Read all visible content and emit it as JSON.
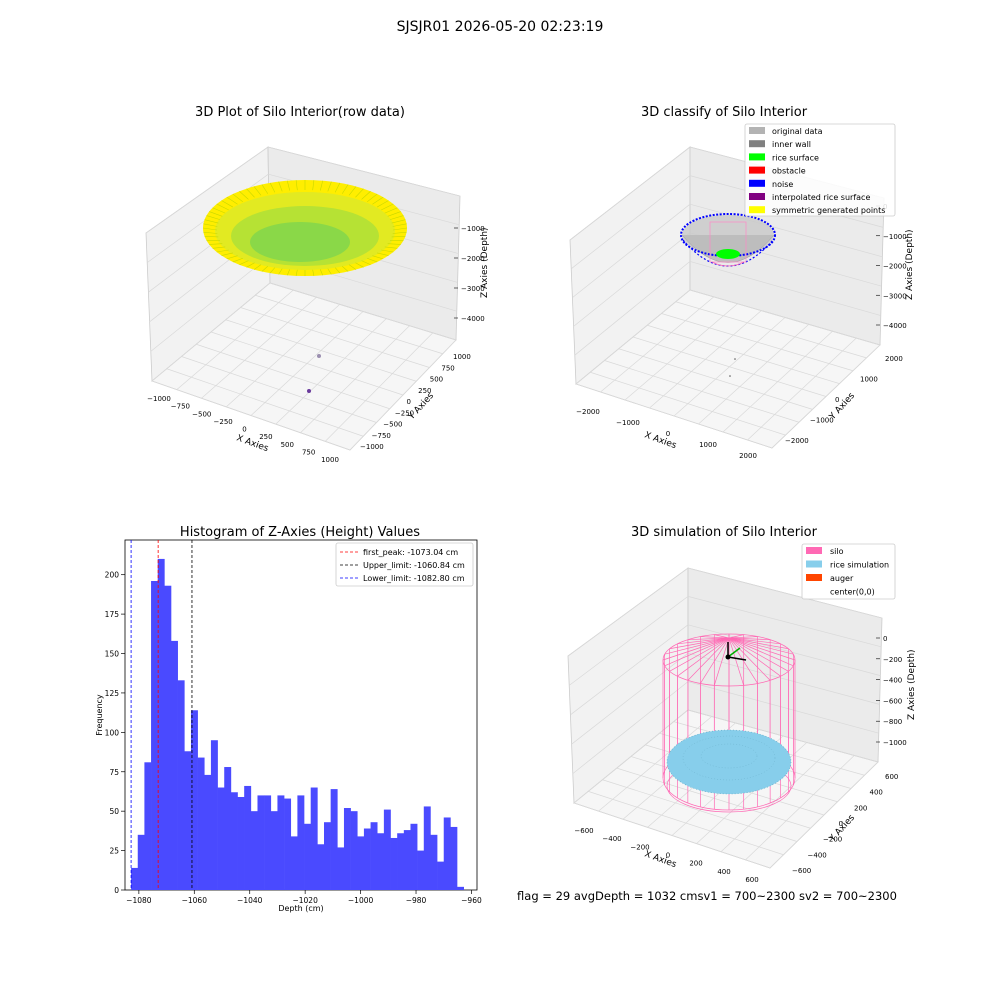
{
  "suptitle": "SJSJR01 2026-05-20 02:23:19",
  "panel_raw": {
    "title": "3D Plot of Silo Interior(row data)",
    "xlabel": "X Axies",
    "ylabel": "Y Axies",
    "zlabel": "Z Axies (Depth)",
    "x_ticks": [
      "−1000",
      "−750",
      "−500",
      "−250",
      "0",
      "250",
      "500",
      "750",
      "1000"
    ],
    "y_ticks": [
      "−1000",
      "−750",
      "−500",
      "−250",
      "0",
      "250",
      "500",
      "750",
      "1000"
    ],
    "z_ticks": [
      "−1000",
      "−2000",
      "−3000",
      "−4000"
    ]
  },
  "panel_classify": {
    "title": "3D classify of Silo Interior",
    "xlabel": "X Axies",
    "ylabel": "Y Axies",
    "zlabel": "Z Axies (Depth)",
    "x_ticks": [
      "−2000",
      "−1000",
      "0",
      "1000",
      "2000"
    ],
    "y_ticks": [
      "−2000",
      "−1000",
      "0",
      "1000",
      "2000"
    ],
    "z_ticks": [
      "0",
      "−1000",
      "−2000",
      "−3000",
      "−4000"
    ],
    "legend": [
      {
        "label": "original data",
        "color": "#b3b3b3"
      },
      {
        "label": "inner wall",
        "color": "#808080"
      },
      {
        "label": "rice surface",
        "color": "#00ff00"
      },
      {
        "label": "obstacle",
        "color": "#ff0000"
      },
      {
        "label": "noise",
        "color": "#0000ff"
      },
      {
        "label": "interpolated rice surface",
        "color": "#800080"
      },
      {
        "label": "symmetric generated points",
        "color": "#ffff00"
      }
    ]
  },
  "panel_sim": {
    "title": "3D simulation of Silo Interior",
    "xlabel": "X Axies",
    "ylabel": "Y Axies",
    "zlabel": "Z Axies (Depth)",
    "x_ticks": [
      "−600",
      "−400",
      "−200",
      "0",
      "200",
      "400",
      "600"
    ],
    "y_ticks": [
      "−600",
      "−400",
      "−200",
      "0",
      "200",
      "400",
      "600"
    ],
    "z_ticks": [
      "0",
      "−200",
      "−400",
      "−600",
      "−800",
      "−1000"
    ],
    "legend": [
      {
        "label": "silo",
        "color": "#ff69b4"
      },
      {
        "label": "rice simulation",
        "color": "#87ceeb"
      },
      {
        "label": "auger",
        "color": "#ff4500"
      },
      {
        "label": "center(0,0)",
        "color": ""
      }
    ]
  },
  "status_line": "flag = 29  avgDepth = 1032 cmsv1 = 700~2300  sv2 = 700~2300",
  "colors": {
    "histogram_bar": "#4a4aff",
    "first_peak_line": "#ff0000",
    "upper_limit_line": "#000000",
    "lower_limit_line": "#0000ff"
  },
  "chart_data": {
    "type": "bar",
    "title": "Histogram of Z-Axies (Height) Values",
    "xlabel": "Depth (cm)",
    "ylabel": "Frequency",
    "xlim": [
      -1085,
      -958
    ],
    "ylim": [
      0,
      222
    ],
    "x_ticks": [
      -1080,
      -1060,
      -1040,
      -1020,
      -1000,
      -980,
      -960
    ],
    "y_ticks": [
      0,
      25,
      50,
      75,
      100,
      125,
      150,
      175,
      200
    ],
    "bin_start": -1082.8,
    "bin_width": 2.4,
    "values": [
      14,
      35,
      81,
      196,
      210,
      193,
      158,
      133,
      88,
      114,
      84,
      73,
      95,
      65,
      78,
      62,
      59,
      66,
      50,
      60,
      60,
      50,
      60,
      58,
      34,
      60,
      42,
      65,
      29,
      43,
      64,
      27,
      52,
      50,
      34,
      39,
      43,
      36,
      51,
      33,
      36,
      38,
      42,
      25,
      53,
      35,
      18,
      46,
      40,
      2
    ],
    "vlines": [
      {
        "label": "first_peak: -1073.04 cm",
        "x": -1073.04,
        "color": "#ff0000"
      },
      {
        "label": "Upper_limit: -1060.84 cm",
        "x": -1060.84,
        "color": "#000000"
      },
      {
        "label": "Lower_limit: -1082.80 cm",
        "x": -1082.8,
        "color": "#0000ff"
      }
    ],
    "legend_position": "top-right"
  }
}
